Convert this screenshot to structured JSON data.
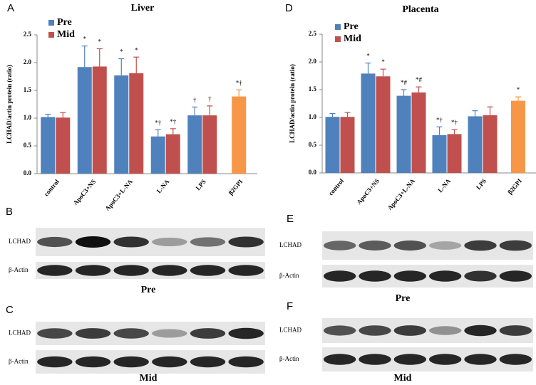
{
  "chart_data": [
    {
      "type": "bar",
      "panel": "A",
      "title": "Liver",
      "y_label": "LCHAD/actin protein (ratio)",
      "categories": [
        "control",
        "ApoC3+NS",
        "ApoC3+L-NA",
        "L-NA",
        "LPS",
        "β2GPI"
      ],
      "series": [
        {
          "name": "Pre",
          "color": "#4f81bd",
          "bar_colors": [
            null,
            null,
            null,
            null,
            null,
            "#f79646"
          ],
          "values": [
            1.02,
            1.92,
            1.77,
            0.67,
            1.05,
            1.39
          ],
          "errors": [
            0.05,
            0.38,
            0.3,
            0.12,
            0.15,
            0.12
          ],
          "annotations": [
            null,
            "*",
            "*",
            "*†",
            "†",
            "*†"
          ]
        },
        {
          "name": "Mid",
          "color": "#c0504d",
          "values": [
            1.01,
            1.93,
            1.81,
            0.71,
            1.05,
            null
          ],
          "errors": [
            0.09,
            0.32,
            0.29,
            0.1,
            0.17,
            null
          ],
          "annotations": [
            null,
            "*",
            "*",
            "*†",
            "†",
            null
          ]
        }
      ],
      "ylim": [
        0,
        2.5
      ],
      "yticks": [
        {
          "value": 0,
          "label": "0.0"
        },
        0.5,
        {
          "value": 1,
          "label": "1.0"
        },
        1.5,
        {
          "value": 2,
          "label": "2.0"
        },
        2.5
      ],
      "grid": false,
      "legend": "top-left"
    },
    {
      "type": "bar",
      "panel": "D",
      "title": "Placenta",
      "y_label": "LCHAD/actin protein (ratio)",
      "categories": [
        "control",
        "ApoC3+NS",
        "ApoC3+L-NA",
        "L-NA",
        "LPS",
        "β2GPI"
      ],
      "series": [
        {
          "name": "Pre",
          "color": "#4f81bd",
          "bar_colors": [
            null,
            null,
            null,
            null,
            null,
            "#f79646"
          ],
          "values": [
            1.01,
            1.79,
            1.39,
            0.68,
            1.02,
            1.3
          ],
          "errors": [
            0.06,
            0.19,
            0.11,
            0.15,
            0.1,
            0.07
          ],
          "annotations": [
            null,
            "*",
            "*#",
            "*†",
            null,
            "*"
          ]
        },
        {
          "name": "Mid",
          "color": "#c0504d",
          "values": [
            1.01,
            1.74,
            1.45,
            0.7,
            1.04,
            null
          ],
          "errors": [
            0.08,
            0.13,
            0.1,
            0.08,
            0.15,
            null
          ],
          "annotations": [
            null,
            "*",
            "*#",
            "*†",
            null,
            null
          ]
        }
      ],
      "ylim": [
        0,
        2.5
      ],
      "yticks": [
        {
          "value": 0,
          "label": "0.0"
        },
        0.5,
        {
          "value": 1,
          "label": "1.0"
        },
        1.5,
        {
          "value": 2,
          "label": "2.0"
        },
        2.5
      ],
      "grid": false,
      "legend": "top-left"
    }
  ],
  "blots": [
    {
      "panel": "B",
      "rows": [
        "LCHAD",
        "β-Actin"
      ],
      "caption": "Pre"
    },
    {
      "panel": "C",
      "rows": [
        "LCHAD",
        "β-Actin"
      ],
      "caption": "Mid"
    },
    {
      "panel": "E",
      "rows": [
        "LCHAD",
        "β-Actin"
      ],
      "caption": "Pre"
    },
    {
      "panel": "F",
      "rows": [
        "LCHAD",
        "β-Actin"
      ],
      "caption": "Mid"
    }
  ]
}
